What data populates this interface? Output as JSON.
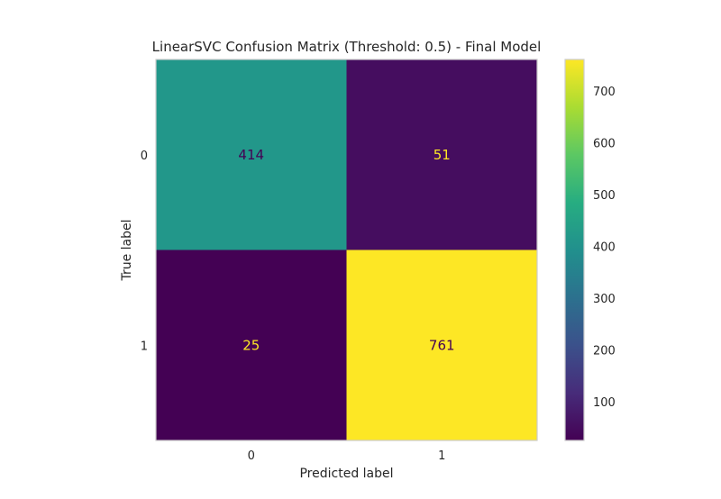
{
  "chart_data": {
    "type": "heatmap",
    "title": "LinearSVC Confusion Matrix (Threshold: 0.5) - Final Model",
    "xlabel": "Predicted label",
    "ylabel": "True label",
    "x_categories": [
      "0",
      "1"
    ],
    "y_categories": [
      "0",
      "1"
    ],
    "values": [
      [
        414,
        51
      ],
      [
        25,
        761
      ]
    ],
    "colormap": "viridis",
    "colorbar": {
      "ticks": [
        100,
        200,
        300,
        400,
        500,
        600,
        700
      ],
      "range": [
        25,
        761
      ]
    },
    "grid": false,
    "text_colors": {
      "on_light": "#440154",
      "on_dark": "#fde725"
    }
  }
}
